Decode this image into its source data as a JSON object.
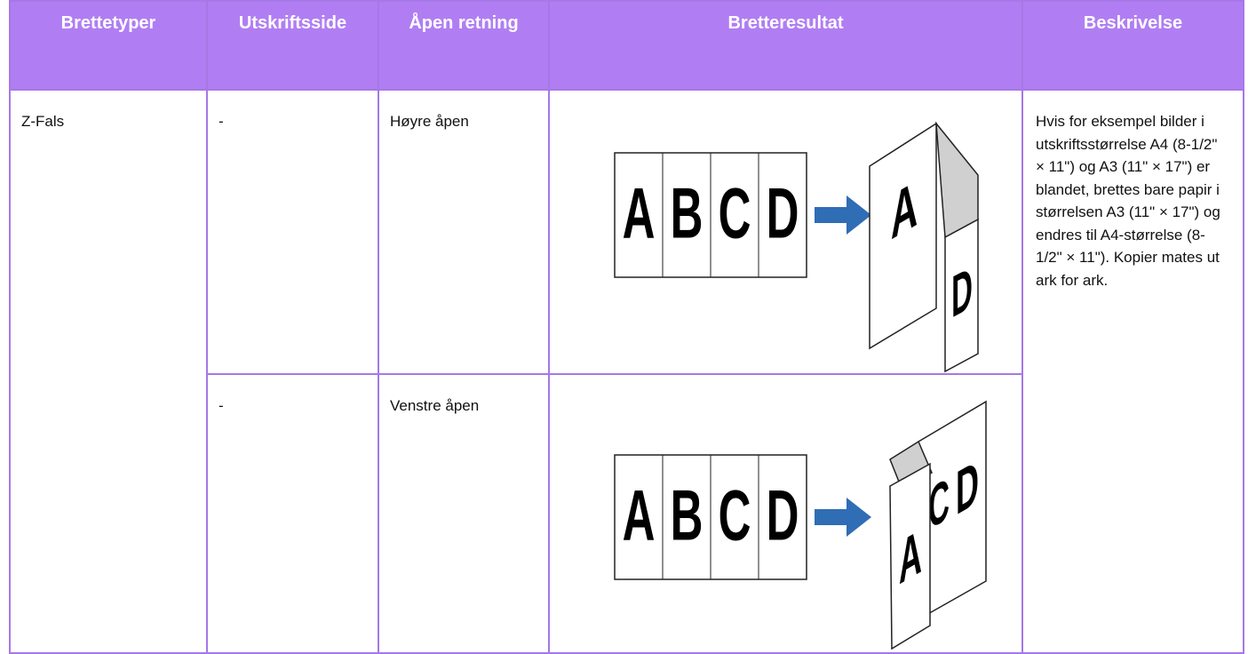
{
  "table": {
    "header": [
      "Brettetyper",
      "Utskriftsside",
      "Åpen retning",
      "Bretteresultat",
      "Beskrivelse"
    ],
    "type": "Z-Fals",
    "description": "Hvis for eksempel bilder i utskriftsstørrelse A4 (8-1/2\" × 11\") og A3 (11\" × 17\") er blandet, brettes bare papir i størrelsen A3 (11\" × 17\") og endres til A4-størrelse (8-1/2\" × 11\"). Kopier mates ut ark for ark.",
    "rows": [
      {
        "side": "-",
        "direction": "Høyre åpen",
        "panels": [
          "A",
          "B",
          "C",
          "D"
        ]
      },
      {
        "side": "-",
        "direction": "Venstre åpen",
        "panels": [
          "A",
          "B",
          "C",
          "D"
        ]
      }
    ]
  }
}
